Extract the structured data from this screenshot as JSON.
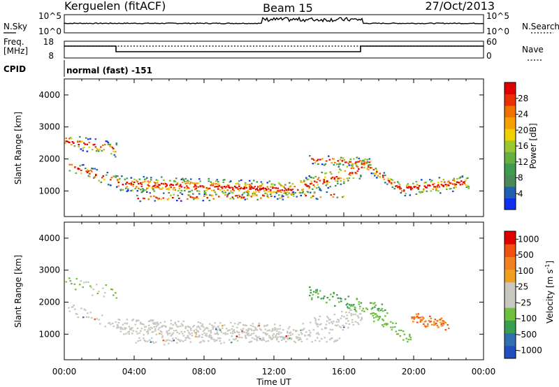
{
  "header": {
    "station": "Kerguelen (fitACF)",
    "beam": "Beam 15",
    "date": "27/Oct/2013"
  },
  "strip": {
    "nsky_label": "N.Sky",
    "nsky_ticks": [
      "10^5",
      "10^0"
    ],
    "nsearch_label": "N.Search",
    "nsearch_ticks": [
      "10^5",
      "10^0"
    ],
    "freq_label": "Freq.",
    "freq_unit": "[MHz]",
    "freq_ticks": [
      "18",
      "8"
    ],
    "nave_label": "Nave",
    "nave_ticks": [
      "60",
      "0"
    ],
    "cpid_label": "CPID",
    "cpid_text": "normal (fast) -151"
  },
  "colors": {
    "power_scale": [
      "#1030f0",
      "#2060b0",
      "#4a8a5a",
      "#3f9b50",
      "#64b040",
      "#9bc830",
      "#f0d000",
      "#f5a000",
      "#f07000",
      "#e83000",
      "#e00000"
    ],
    "velocity_scale": [
      "#2050c0",
      "#3070b0",
      "#3aa050",
      "#70c040",
      "#c8c8c0",
      "#c8c8c0",
      "#f0a020",
      "#f08020",
      "#f05010",
      "#e00000"
    ]
  },
  "chart_data": [
    {
      "type": "heatmap",
      "name": "power",
      "ylabel": "Slant Range [km]",
      "yticks": [
        "1000",
        "2000",
        "3000",
        "4000"
      ],
      "ylim": [
        200,
        4500
      ],
      "colorbar_label": "Power [dB]",
      "colorbar_ticks": [
        "4",
        "8",
        "12",
        "16",
        "20",
        "24",
        "28"
      ],
      "colorbar_range": [
        0,
        32
      ]
    },
    {
      "type": "heatmap",
      "name": "velocity",
      "ylabel": "Slant Range [km]",
      "yticks": [
        "1000",
        "2000",
        "3000",
        "4000"
      ],
      "ylim": [
        200,
        4500
      ],
      "colorbar_label": "Velocity [m s",
      "colorbar_label_sup": "-1",
      "colorbar_label_end": "]",
      "colorbar_ticks": [
        "1000",
        "500",
        "100",
        "25",
        "-25",
        "-100",
        "-500",
        "-1000"
      ]
    }
  ],
  "time_axis": {
    "label": "Time UT",
    "ticks": [
      "00:00",
      "04:00",
      "08:00",
      "12:00",
      "16:00",
      "20:00",
      "00:00"
    ]
  }
}
